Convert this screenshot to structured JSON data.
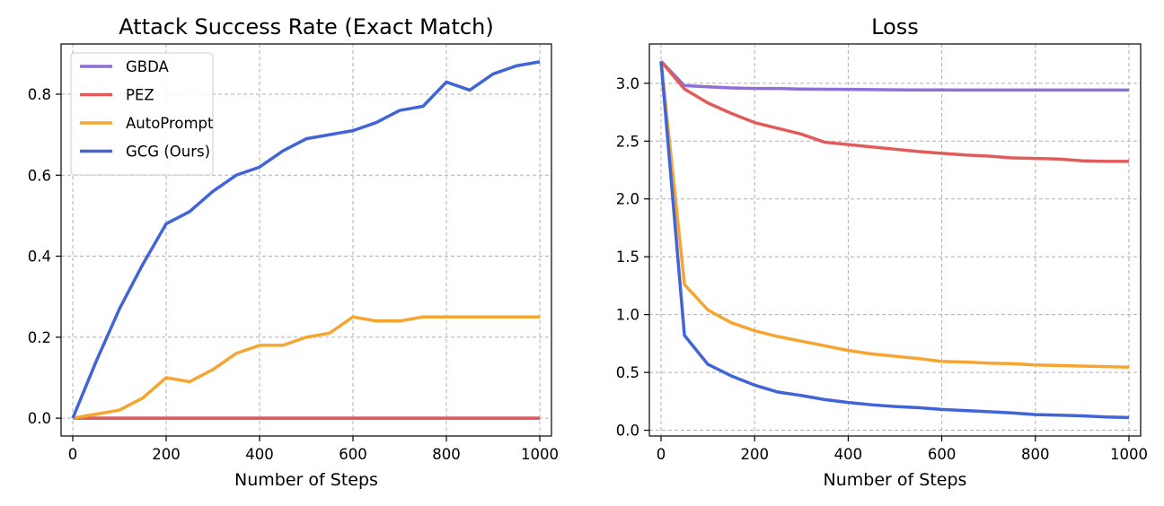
{
  "chart_data": [
    {
      "type": "line",
      "title": "Attack Success Rate (Exact Match)",
      "xlabel": "Number of Steps",
      "ylabel": "",
      "xlim": [
        -25,
        1025
      ],
      "ylim": [
        -0.044,
        0.924
      ],
      "xticks": [
        0,
        200,
        400,
        600,
        800,
        1000
      ],
      "yticks": [
        0.0,
        0.2,
        0.4,
        0.6,
        0.8
      ],
      "ytick_labels": [
        "0.0",
        "0.2",
        "0.4",
        "0.6",
        "0.8"
      ],
      "grid": true,
      "legend": "top-left",
      "series": [
        {
          "name": "GBDA",
          "color": "#8e6fd6",
          "x": [
            0,
            50,
            100,
            150,
            200,
            250,
            300,
            350,
            400,
            450,
            500,
            550,
            600,
            650,
            700,
            750,
            800,
            850,
            900,
            950,
            1000
          ],
          "y": [
            0,
            0,
            0,
            0,
            0,
            0,
            0,
            0,
            0,
            0,
            0,
            0,
            0,
            0,
            0,
            0,
            0,
            0,
            0,
            0,
            0
          ]
        },
        {
          "name": "PEZ",
          "color": "#e25b5b",
          "x": [
            0,
            50,
            100,
            150,
            200,
            250,
            300,
            350,
            400,
            450,
            500,
            550,
            600,
            650,
            700,
            750,
            800,
            850,
            900,
            950,
            1000
          ],
          "y": [
            0,
            0,
            0,
            0,
            0,
            0,
            0,
            0,
            0,
            0,
            0,
            0,
            0,
            0,
            0,
            0,
            0,
            0,
            0,
            0,
            0
          ]
        },
        {
          "name": "AutoPrompt",
          "color": "#f6a531",
          "x": [
            0,
            50,
            100,
            150,
            200,
            250,
            300,
            350,
            400,
            450,
            500,
            550,
            600,
            650,
            700,
            750,
            800,
            850,
            900,
            950,
            1000
          ],
          "y": [
            0.0,
            0.01,
            0.02,
            0.05,
            0.1,
            0.09,
            0.12,
            0.16,
            0.18,
            0.18,
            0.2,
            0.21,
            0.25,
            0.24,
            0.24,
            0.25,
            0.25,
            0.25,
            0.25,
            0.25,
            0.25
          ]
        },
        {
          "name": "GCG (Ours)",
          "color": "#4164d6",
          "x": [
            0,
            50,
            100,
            150,
            200,
            250,
            300,
            350,
            400,
            450,
            500,
            550,
            600,
            650,
            700,
            750,
            800,
            850,
            900,
            950,
            1000
          ],
          "y": [
            0.0,
            0.14,
            0.27,
            0.38,
            0.48,
            0.51,
            0.56,
            0.6,
            0.62,
            0.66,
            0.69,
            0.7,
            0.71,
            0.73,
            0.76,
            0.77,
            0.83,
            0.81,
            0.85,
            0.87,
            0.88
          ]
        }
      ]
    },
    {
      "type": "line",
      "title": "Loss",
      "xlabel": "Number of Steps",
      "ylabel": "",
      "xlim": [
        -25,
        1025
      ],
      "ylim": [
        -0.05,
        3.34
      ],
      "xticks": [
        0,
        200,
        400,
        600,
        800,
        1000
      ],
      "yticks": [
        0.0,
        0.5,
        1.0,
        1.5,
        2.0,
        2.5,
        3.0
      ],
      "ytick_labels": [
        "0.0",
        "0.5",
        "1.0",
        "1.5",
        "2.0",
        "2.5",
        "3.0"
      ],
      "grid": true,
      "legend": "none",
      "series": [
        {
          "name": "GBDA",
          "color": "#8e6fd6",
          "x": [
            0,
            50,
            100,
            150,
            200,
            250,
            300,
            350,
            400,
            450,
            500,
            550,
            600,
            650,
            700,
            750,
            800,
            850,
            900,
            950,
            1000
          ],
          "y": [
            3.19,
            2.98,
            2.97,
            2.96,
            2.955,
            2.955,
            2.95,
            2.948,
            2.947,
            2.945,
            2.943,
            2.942,
            2.942,
            2.941,
            2.941,
            2.941,
            2.941,
            2.941,
            2.941,
            2.941,
            2.941
          ]
        },
        {
          "name": "PEZ",
          "color": "#e25b5b",
          "x": [
            0,
            50,
            100,
            150,
            200,
            250,
            300,
            350,
            400,
            450,
            500,
            550,
            600,
            650,
            700,
            750,
            800,
            850,
            900,
            950,
            1000
          ],
          "y": [
            3.19,
            2.95,
            2.83,
            2.74,
            2.66,
            2.61,
            2.56,
            2.49,
            2.47,
            2.45,
            2.43,
            2.41,
            2.395,
            2.38,
            2.37,
            2.355,
            2.35,
            2.345,
            2.33,
            2.325,
            2.325
          ]
        },
        {
          "name": "AutoPrompt",
          "color": "#f6a531",
          "x": [
            0,
            50,
            100,
            150,
            200,
            250,
            300,
            350,
            400,
            450,
            500,
            550,
            600,
            650,
            700,
            750,
            800,
            850,
            900,
            950,
            1000
          ],
          "y": [
            3.19,
            1.26,
            1.04,
            0.93,
            0.86,
            0.81,
            0.77,
            0.73,
            0.69,
            0.66,
            0.64,
            0.62,
            0.595,
            0.59,
            0.58,
            0.575,
            0.565,
            0.56,
            0.555,
            0.55,
            0.545
          ]
        },
        {
          "name": "GCG (Ours)",
          "color": "#4164d6",
          "x": [
            0,
            50,
            100,
            150,
            200,
            250,
            300,
            350,
            400,
            450,
            500,
            550,
            600,
            650,
            700,
            750,
            800,
            850,
            900,
            950,
            1000
          ],
          "y": [
            3.19,
            0.82,
            0.57,
            0.47,
            0.39,
            0.33,
            0.3,
            0.265,
            0.24,
            0.22,
            0.205,
            0.195,
            0.18,
            0.17,
            0.16,
            0.15,
            0.135,
            0.13,
            0.125,
            0.115,
            0.11
          ]
        }
      ]
    }
  ]
}
